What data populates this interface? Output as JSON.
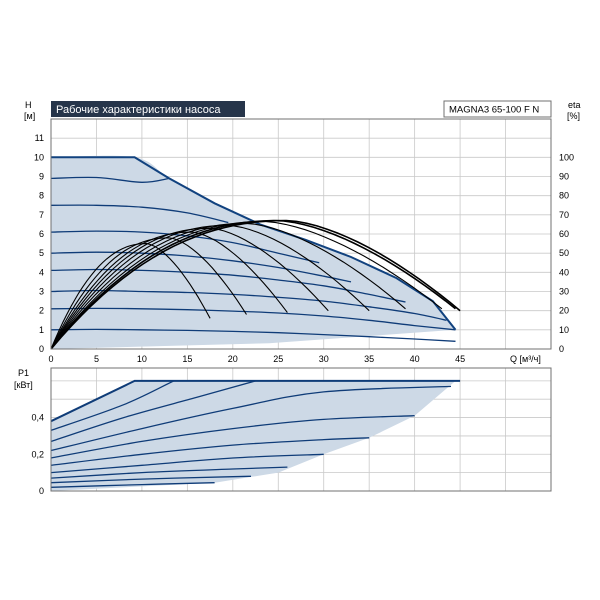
{
  "header": {
    "title": "Рабочие характеристики насоса",
    "model": "MAGNA3 65-100 F N",
    "title_bg": "#26354a"
  },
  "colors": {
    "fill": "#cdd9e6",
    "curve": "#0f3c78",
    "envelope": "#11427f",
    "eta": "#000000"
  },
  "chart_data": [
    {
      "type": "line",
      "x_axis": {
        "label": "Q [м³/ч]",
        "range": [
          0,
          55
        ],
        "ticks": [
          0,
          5,
          10,
          15,
          20,
          25,
          30,
          35,
          40,
          45
        ]
      },
      "y_axis": {
        "label_top": "H",
        "label_unit": "[м]",
        "range": [
          0,
          12
        ],
        "ticks": [
          0,
          1,
          2,
          3,
          4,
          5,
          6,
          7,
          8,
          9,
          10,
          11
        ]
      },
      "y2_axis": {
        "label_top": "eta",
        "label_unit": "[%]",
        "range": [
          0,
          120
        ],
        "ticks": [
          0,
          10,
          20,
          30,
          40,
          50,
          60,
          70,
          80,
          90,
          100
        ]
      },
      "grid": true,
      "envelope": [
        [
          0,
          10
        ],
        [
          9.2,
          10
        ],
        [
          13,
          8.9
        ],
        [
          18,
          7.6
        ],
        [
          23,
          6.5
        ],
        [
          28,
          5.7
        ],
        [
          33,
          4.8
        ],
        [
          38,
          3.7
        ],
        [
          42,
          2.5
        ],
        [
          44.5,
          1.0
        ],
        [
          24,
          0.3
        ],
        [
          0,
          0
        ]
      ],
      "head_curves": [
        {
          "shutoff": 10.0,
          "points": [
            [
              0,
              10
            ],
            [
              9.2,
              10
            ]
          ]
        },
        {
          "shutoff": 8.9,
          "points": [
            [
              0,
              8.9
            ],
            [
              5,
              8.95
            ],
            [
              10,
              8.7
            ],
            [
              13,
              8.9
            ]
          ]
        },
        {
          "shutoff": 7.5,
          "points": [
            [
              0,
              7.5
            ],
            [
              5,
              7.5
            ],
            [
              10,
              7.4
            ],
            [
              15,
              7.1
            ],
            [
              19.5,
              6.6
            ]
          ]
        },
        {
          "shutoff": 6.1,
          "points": [
            [
              0,
              6.1
            ],
            [
              5,
              6.15
            ],
            [
              10,
              6.1
            ],
            [
              15,
              5.9
            ],
            [
              20,
              5.55
            ],
            [
              25,
              5.0
            ],
            [
              29.5,
              4.5
            ]
          ]
        },
        {
          "shutoff": 5.0,
          "points": [
            [
              0,
              5.0
            ],
            [
              5,
              5.05
            ],
            [
              10,
              5.0
            ],
            [
              15,
              4.85
            ],
            [
              20,
              4.6
            ],
            [
              25,
              4.25
            ],
            [
              30,
              3.8
            ],
            [
              33,
              3.5
            ]
          ]
        },
        {
          "shutoff": 4.1,
          "points": [
            [
              0,
              4.1
            ],
            [
              5,
              4.15
            ],
            [
              10,
              4.1
            ],
            [
              15,
              4.0
            ],
            [
              20,
              3.85
            ],
            [
              25,
              3.6
            ],
            [
              30,
              3.3
            ],
            [
              35,
              2.85
            ],
            [
              39,
              2.45
            ]
          ]
        },
        {
          "shutoff": 3.0,
          "points": [
            [
              0,
              3.0
            ],
            [
              5,
              3.05
            ],
            [
              10,
              3.0
            ],
            [
              15,
              2.95
            ],
            [
              20,
              2.85
            ],
            [
              25,
              2.7
            ],
            [
              30,
              2.5
            ],
            [
              35,
              2.2
            ],
            [
              40,
              1.85
            ],
            [
              43.5,
              1.5
            ]
          ]
        },
        {
          "shutoff": 2.1,
          "points": [
            [
              0,
              2.1
            ],
            [
              5,
              2.12
            ],
            [
              10,
              2.1
            ],
            [
              15,
              2.05
            ],
            [
              20,
              1.98
            ],
            [
              25,
              1.88
            ],
            [
              30,
              1.72
            ],
            [
              35,
              1.5
            ],
            [
              40,
              1.22
            ],
            [
              44.5,
              1.0
            ]
          ]
        },
        {
          "shutoff": 1.0,
          "points": [
            [
              0,
              1.0
            ],
            [
              5,
              1.02
            ],
            [
              10,
              1.0
            ],
            [
              15,
              0.97
            ],
            [
              20,
              0.92
            ],
            [
              25,
              0.85
            ],
            [
              30,
              0.75
            ],
            [
              35,
              0.64
            ],
            [
              40,
              0.52
            ],
            [
              44.5,
              0.4
            ]
          ]
        }
      ],
      "eta_curves": [
        {
          "peak_q": 10.5,
          "peak_eta": 55,
          "end_q": 17.5,
          "end_eta": 16
        },
        {
          "peak_q": 13.0,
          "peak_eta": 58,
          "end_q": 21.5,
          "end_eta": 18
        },
        {
          "peak_q": 15.5,
          "peak_eta": 61,
          "end_q": 26.0,
          "end_eta": 19
        },
        {
          "peak_q": 17.5,
          "peak_eta": 63,
          "end_q": 30.5,
          "end_eta": 20
        },
        {
          "peak_q": 19.5,
          "peak_eta": 64.5,
          "end_q": 35.0,
          "end_eta": 20
        },
        {
          "peak_q": 21.5,
          "peak_eta": 65.5,
          "end_q": 39.0,
          "end_eta": 21
        },
        {
          "peak_q": 23.5,
          "peak_eta": 66.5,
          "end_q": 43.0,
          "end_eta": 21
        },
        {
          "peak_q": 25.0,
          "peak_eta": 67,
          "end_q": 44.5,
          "end_eta": 21
        },
        {
          "peak_q": 26.0,
          "peak_eta": 67,
          "end_q": 45.0,
          "end_eta": 20
        }
      ]
    },
    {
      "type": "line",
      "x_axis": {
        "label": "Q [м³/ч]",
        "range": [
          0,
          55
        ]
      },
      "y_axis": {
        "label_top": "P1",
        "label_unit": "[кВт]",
        "range": [
          0,
          0.67
        ],
        "ticks": [
          0,
          0.2,
          0.4
        ],
        "tick_labels": [
          "0",
          "0,2",
          "0,4"
        ]
      },
      "grid": true,
      "envelope": [
        [
          0,
          0.38
        ],
        [
          9.2,
          0.6
        ],
        [
          45,
          0.6
        ],
        [
          44.5,
          0.6
        ],
        [
          35,
          0.29
        ],
        [
          25,
          0.1
        ],
        [
          0,
          0.0
        ]
      ],
      "power_curves": [
        {
          "points": [
            [
              0,
              0.38
            ],
            [
              9.2,
              0.6
            ],
            [
              45,
              0.6
            ]
          ]
        },
        {
          "points": [
            [
              0,
              0.33
            ],
            [
              8,
              0.47
            ],
            [
              13.5,
              0.6
            ]
          ]
        },
        {
          "points": [
            [
              0,
              0.27
            ],
            [
              8,
              0.4
            ],
            [
              16,
              0.51
            ],
            [
              22.5,
              0.6
            ]
          ]
        },
        {
          "points": [
            [
              0,
              0.22
            ],
            [
              10,
              0.34
            ],
            [
              20,
              0.45
            ],
            [
              30,
              0.54
            ],
            [
              44,
              0.57
            ]
          ]
        },
        {
          "points": [
            [
              0,
              0.18
            ],
            [
              10,
              0.27
            ],
            [
              20,
              0.34
            ],
            [
              30,
              0.39
            ],
            [
              40,
              0.41
            ]
          ]
        },
        {
          "points": [
            [
              0,
              0.14
            ],
            [
              10,
              0.2
            ],
            [
              20,
              0.25
            ],
            [
              30,
              0.28
            ],
            [
              35,
              0.29
            ]
          ]
        },
        {
          "points": [
            [
              0,
              0.1
            ],
            [
              10,
              0.14
            ],
            [
              20,
              0.18
            ],
            [
              30,
              0.2
            ]
          ]
        },
        {
          "points": [
            [
              0,
              0.07
            ],
            [
              10,
              0.1
            ],
            [
              20,
              0.12
            ],
            [
              26,
              0.13
            ]
          ]
        },
        {
          "points": [
            [
              0,
              0.045
            ],
            [
              10,
              0.065
            ],
            [
              20,
              0.078
            ],
            [
              22,
              0.08
            ]
          ]
        },
        {
          "points": [
            [
              0,
              0.02
            ],
            [
              10,
              0.035
            ],
            [
              18,
              0.045
            ]
          ]
        }
      ]
    }
  ]
}
